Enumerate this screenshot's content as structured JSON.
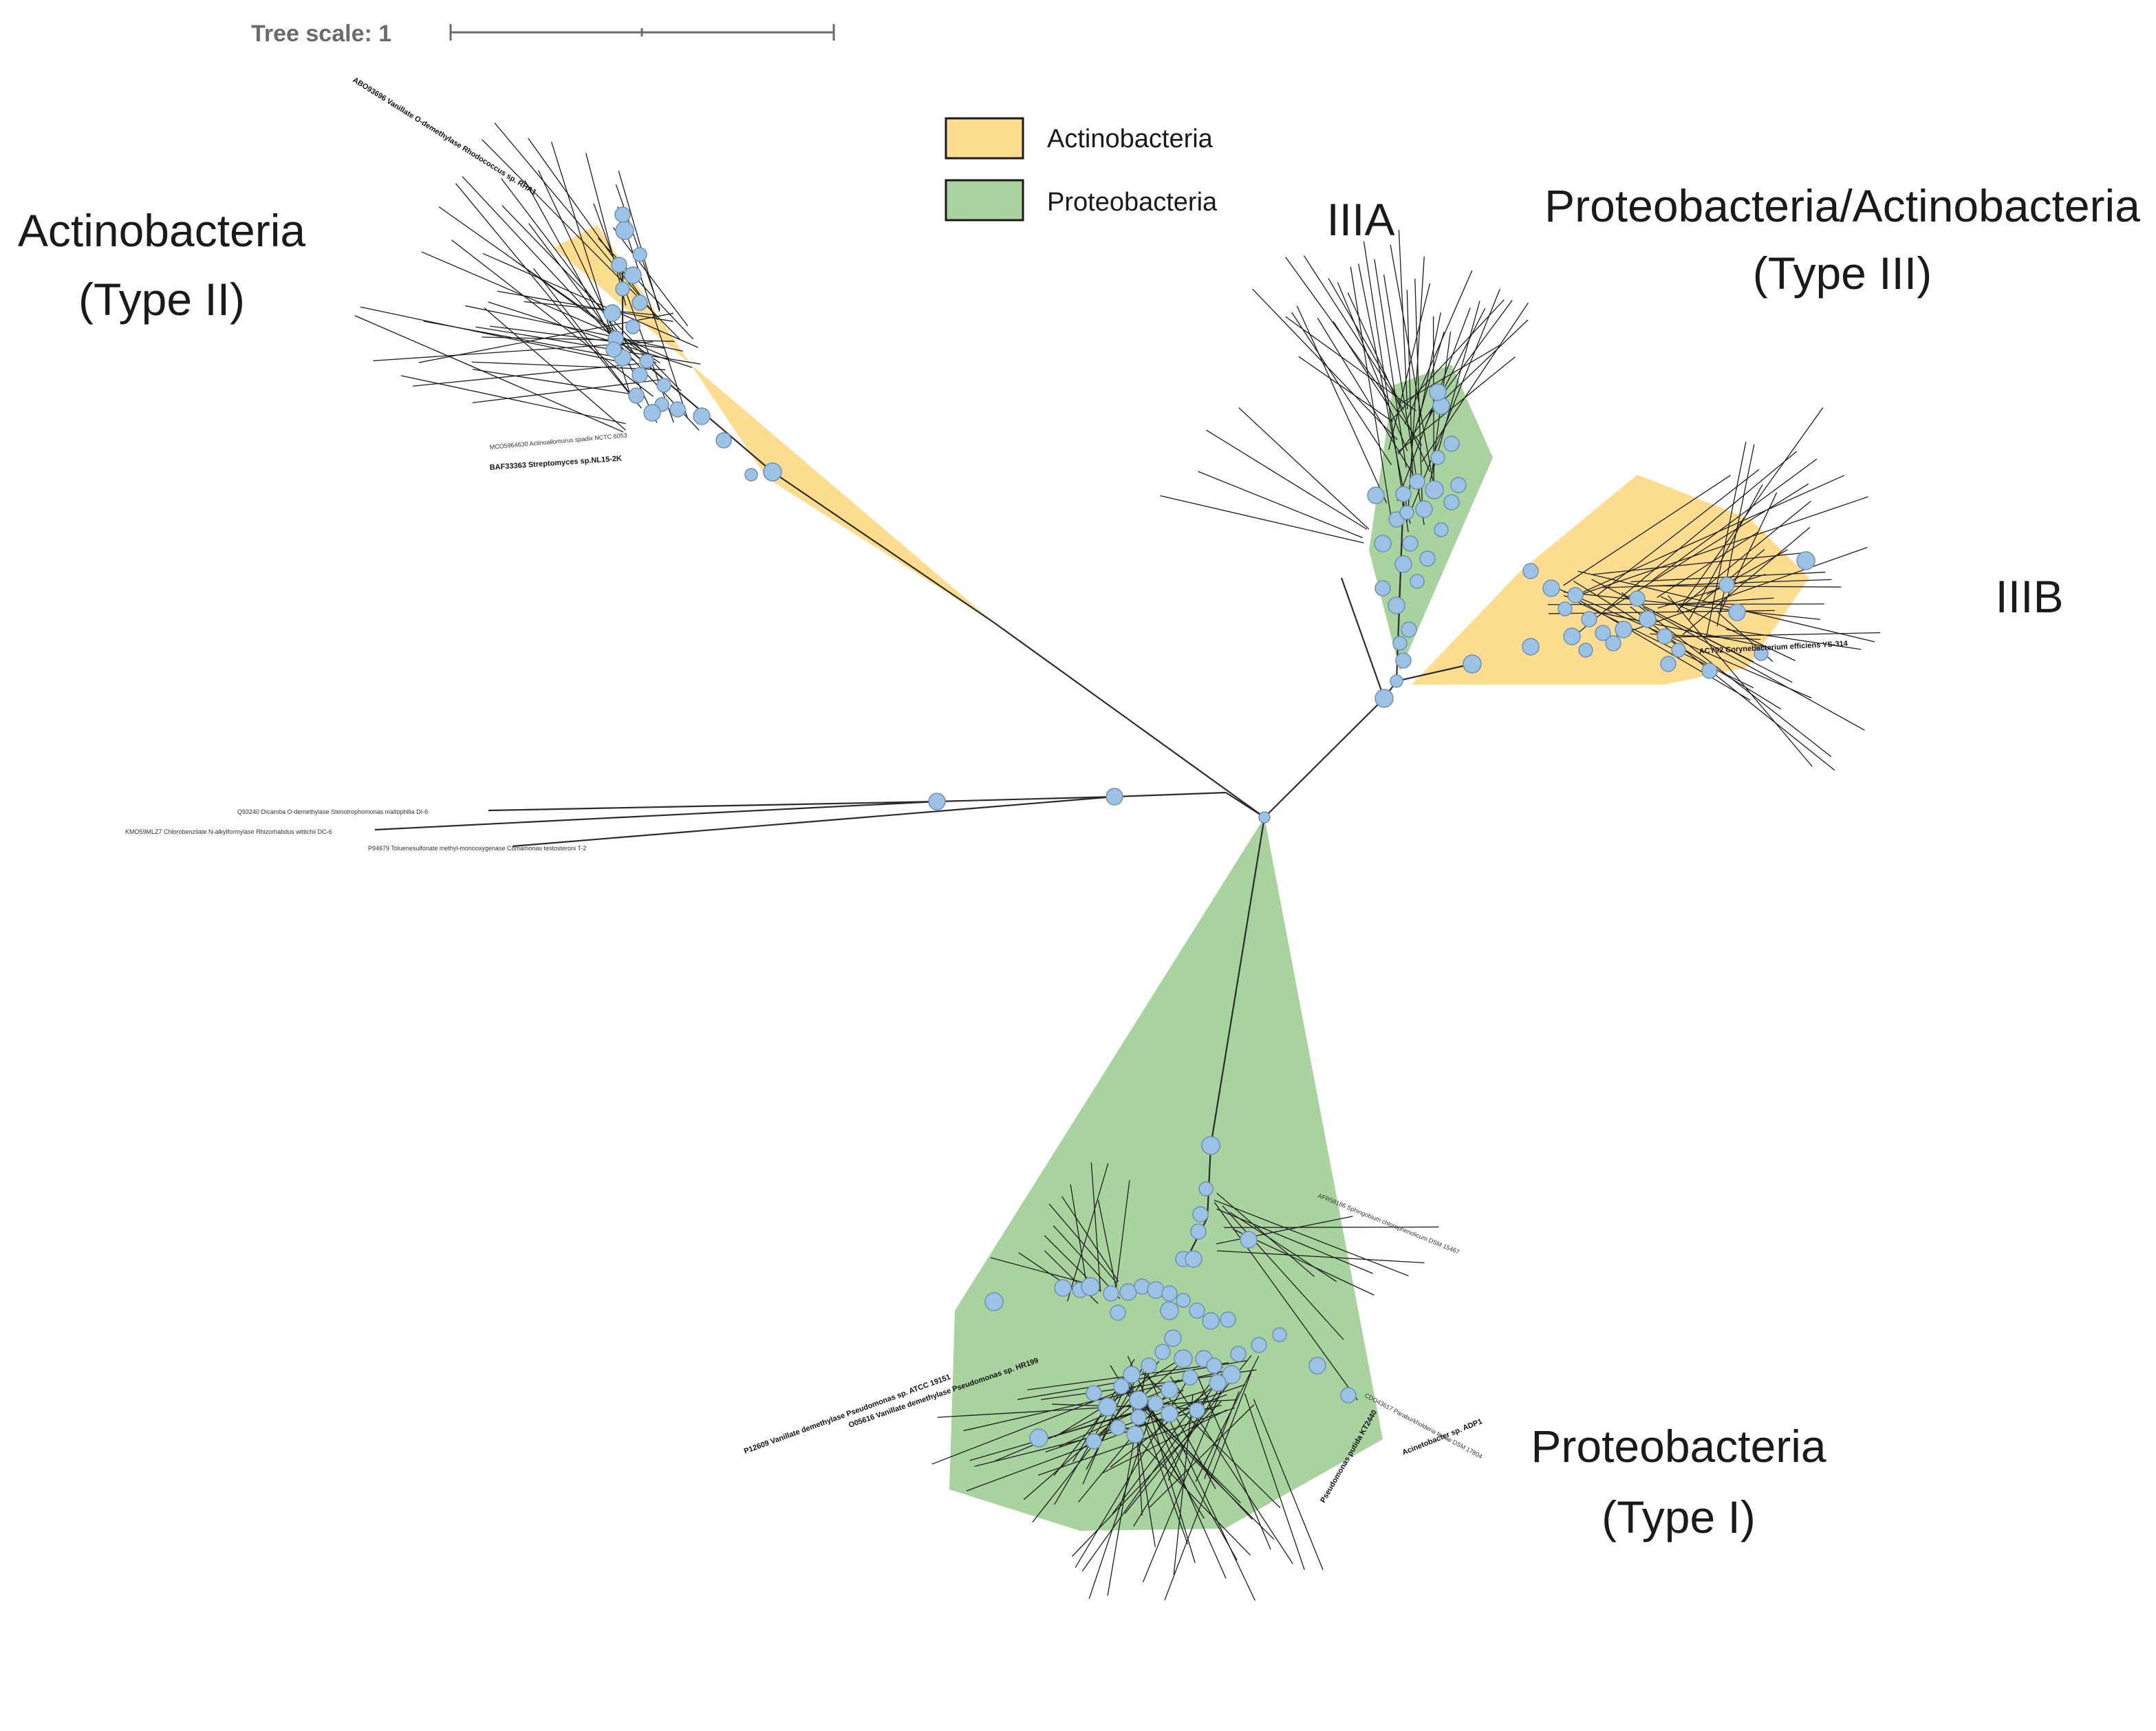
{
  "scale": {
    "label": "Tree scale: 1"
  },
  "legend": [
    {
      "name": "Actinobacteria",
      "color": "#fcdc8e"
    },
    {
      "name": "Proteobacteria",
      "color": "#a9d39e"
    }
  ],
  "clade_labels": {
    "type2": [
      "Actinobacteria",
      "(Type II)"
    ],
    "type3": [
      "Proteobacteria/Actinobacteria",
      "(Type III)"
    ],
    "type1": [
      "Proteobacteria",
      "(Type I)"
    ],
    "subclade_a": "IIIA",
    "subclade_b": "IIIB"
  },
  "colors": {
    "node": "#9cc3e6",
    "branch": "#2b2b2b"
  },
  "tips": {
    "outgroup": [
      "Q93240 Dicamba O-demethylase Stenotrophomonas maltophilia DI-6",
      "KMO59MLZ7 Chlorobenzilate N-alkylformylase Rhizorhabdus wittichii DC-6",
      "P94679 Toluenesulfonate methyl-monooxygenase Comamonas testosteroni T-2"
    ],
    "type2_bold": "BAF33363 Streptomyces sp.NL15-2K",
    "type2_named": "MCO5964630 Actinoallomurus spadix NCTC 6053",
    "type2_bold_top": "ABO93696 Vanillate O-demethylase Rhodococcus sp. RHA1",
    "type3_bold": "ACY92 Corynebacterium efficiens YS-314",
    "type1_bold_1": "O05616 Vanillate demethylase Pseudomonas sp. HR199",
    "type1_bold_2": "P12609 Vanillate demethylase Pseudomonas sp. ATCC 19151",
    "type1_bold_3": "Acinetobacter sp. ADP1",
    "type1_bold_4": "Pseudomonas putida KT2440",
    "type1_named_1": "AFR58186 Sphingobium chlorophenolicum DSM 15467",
    "type1_named_2": "CDO43617 Paraburkholderia terrae DSM 17804"
  }
}
